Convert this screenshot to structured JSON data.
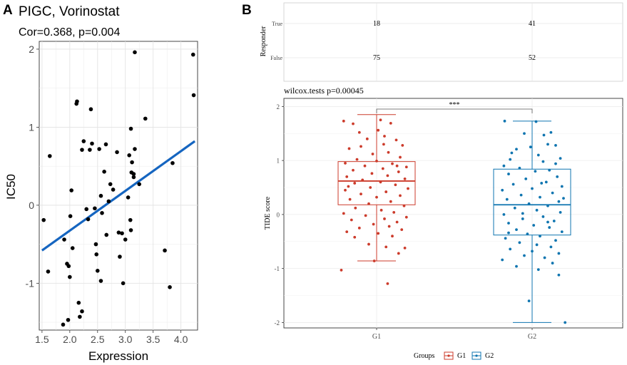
{
  "panels": {
    "a_label": "A",
    "b_label": "B"
  },
  "colors": {
    "line": "#1565c0",
    "g1": "#cc3b2b",
    "g2": "#0f75b0",
    "grid": "#ebebeb",
    "point": "#000000"
  },
  "chart_data": [
    {
      "type": "scatter",
      "title": "PIGC, Vorinostat",
      "subtitle": "Cor=0.368, p=0.004",
      "xlabel": "Expression",
      "ylabel": "IC50",
      "xlim": [
        1.45,
        4.3
      ],
      "ylim": [
        -1.6,
        2.1
      ],
      "xticks": [
        "1.5",
        "2.0",
        "2.5",
        "3.0",
        "3.5",
        "4.0"
      ],
      "xtick_values": [
        1.5,
        2.0,
        2.5,
        3.0,
        3.5,
        4.0
      ],
      "yticks": [
        "2",
        "1",
        "0",
        "-1"
      ],
      "ytick_values": [
        2,
        1,
        0,
        -1
      ],
      "grid": true,
      "fit_line": {
        "x": [
          1.5,
          4.25
        ],
        "y": [
          -0.58,
          0.82
        ]
      },
      "points": [
        [
          1.53,
          -0.19
        ],
        [
          1.61,
          -0.85
        ],
        [
          1.64,
          0.63
        ],
        [
          1.88,
          -1.53
        ],
        [
          1.9,
          -0.44
        ],
        [
          1.95,
          -0.75
        ],
        [
          1.97,
          -1.47
        ],
        [
          1.98,
          -0.78
        ],
        [
          2.0,
          -0.92
        ],
        [
          2.01,
          -0.14
        ],
        [
          2.03,
          0.19
        ],
        [
          2.05,
          -0.55
        ],
        [
          2.12,
          1.3
        ],
        [
          2.13,
          1.33
        ],
        [
          2.16,
          -1.25
        ],
        [
          2.18,
          -1.43
        ],
        [
          2.22,
          0.71
        ],
        [
          2.22,
          -1.36
        ],
        [
          2.25,
          0.82
        ],
        [
          2.3,
          -0.05
        ],
        [
          2.33,
          -0.18
        ],
        [
          2.36,
          0.71
        ],
        [
          2.38,
          1.23
        ],
        [
          2.4,
          0.79
        ],
        [
          2.45,
          -0.04
        ],
        [
          2.47,
          -0.5
        ],
        [
          2.48,
          -0.63
        ],
        [
          2.5,
          -0.84
        ],
        [
          2.53,
          0.72
        ],
        [
          2.56,
          0.12
        ],
        [
          2.56,
          -0.97
        ],
        [
          2.58,
          -0.1
        ],
        [
          2.62,
          0.43
        ],
        [
          2.65,
          0.78
        ],
        [
          2.66,
          -0.38
        ],
        [
          2.7,
          0.05
        ],
        [
          2.73,
          0.27
        ],
        [
          2.78,
          0.2
        ],
        [
          2.85,
          0.68
        ],
        [
          2.88,
          -0.35
        ],
        [
          2.9,
          -0.66
        ],
        [
          2.94,
          -0.36
        ],
        [
          2.96,
          -1.0
        ],
        [
          3.0,
          -0.44
        ],
        [
          3.05,
          0.1
        ],
        [
          3.07,
          0.64
        ],
        [
          3.09,
          -0.19
        ],
        [
          3.1,
          -0.32
        ],
        [
          3.1,
          0.98
        ],
        [
          3.11,
          0.42
        ],
        [
          3.12,
          0.55
        ],
        [
          3.15,
          0.4
        ],
        [
          3.15,
          0.36
        ],
        [
          3.17,
          1.96
        ],
        [
          3.17,
          0.72
        ],
        [
          3.25,
          0.27
        ],
        [
          3.36,
          1.11
        ],
        [
          3.71,
          -0.58
        ],
        [
          3.8,
          -1.05
        ],
        [
          3.85,
          0.54
        ],
        [
          4.22,
          1.93
        ],
        [
          4.23,
          1.41
        ]
      ]
    },
    {
      "type": "table",
      "ylabel": "Responder",
      "rows": [
        "True",
        "False"
      ],
      "columns": [
        "G1",
        "G2"
      ],
      "values": [
        [
          "18",
          "41"
        ],
        [
          "75",
          "52"
        ]
      ]
    },
    {
      "type": "box",
      "title": "wilcox.tests p=0.00045",
      "xlabel": "",
      "ylabel": "TIDE score",
      "ylim": [
        -2.1,
        2.15
      ],
      "yticks": [
        "2",
        "1",
        "0",
        "-1",
        "-2"
      ],
      "ytick_values": [
        2,
        1,
        0,
        -1,
        -2
      ],
      "categories": [
        "G1",
        "G2"
      ],
      "significance": "***",
      "legend_title": "Groups",
      "legend_entries": [
        "G1",
        "G2"
      ],
      "legend_position": "bottom",
      "boxes": [
        {
          "name": "G1",
          "min": -0.86,
          "q1": 0.18,
          "median": 0.62,
          "q3": 0.98,
          "max": 1.85
        },
        {
          "name": "G2",
          "min": -2.0,
          "q1": -0.38,
          "median": 0.18,
          "q3": 0.84,
          "max": 1.73
        }
      ],
      "points_g1": [
        [
          -0.42,
          1.73
        ],
        [
          -0.3,
          1.68
        ],
        [
          0.05,
          1.75
        ],
        [
          0.18,
          1.69
        ],
        [
          0.02,
          1.56
        ],
        [
          -0.22,
          1.52
        ],
        [
          0.1,
          1.45
        ],
        [
          0.25,
          1.38
        ],
        [
          -0.12,
          1.4
        ],
        [
          0.33,
          1.28
        ],
        [
          -0.35,
          1.22
        ],
        [
          0.15,
          1.15
        ],
        [
          -0.05,
          1.12
        ],
        [
          0.3,
          1.06
        ],
        [
          -0.25,
          1.02
        ],
        [
          0.0,
          0.99
        ],
        [
          0.2,
          0.94
        ],
        [
          -0.4,
          0.95
        ],
        [
          -0.15,
          0.9
        ],
        [
          0.38,
          0.88
        ],
        [
          0.08,
          0.85
        ],
        [
          -0.3,
          0.82
        ],
        [
          0.28,
          0.79
        ],
        [
          -0.06,
          0.76
        ],
        [
          0.14,
          0.72
        ],
        [
          -0.38,
          0.7
        ],
        [
          0.36,
          0.66
        ],
        [
          -0.18,
          0.64
        ],
        [
          0.05,
          0.6
        ],
        [
          -0.28,
          0.58
        ],
        [
          0.24,
          0.55
        ],
        [
          -0.08,
          0.5
        ],
        [
          0.4,
          0.48
        ],
        [
          -0.4,
          0.45
        ],
        [
          0.12,
          0.42
        ],
        [
          -0.2,
          0.38
        ],
        [
          0.3,
          0.35
        ],
        [
          0.0,
          0.32
        ],
        [
          -0.34,
          0.28
        ],
        [
          0.18,
          0.24
        ],
        [
          -0.1,
          0.2
        ],
        [
          0.35,
          0.16
        ],
        [
          -0.27,
          0.12
        ],
        [
          0.06,
          0.08
        ],
        [
          0.22,
          0.04
        ],
        [
          -0.42,
          0.02
        ],
        [
          -0.14,
          -0.02
        ],
        [
          0.38,
          -0.05
        ],
        [
          0.1,
          -0.08
        ],
        [
          -0.32,
          -0.1
        ],
        [
          0.26,
          -0.14
        ],
        [
          -0.04,
          -0.18
        ],
        [
          0.16,
          -0.22
        ],
        [
          -0.22,
          -0.25
        ],
        [
          0.32,
          -0.28
        ],
        [
          -0.38,
          -0.32
        ],
        [
          0.02,
          -0.35
        ],
        [
          0.2,
          -0.4
        ],
        [
          -0.28,
          -0.42
        ],
        [
          -0.1,
          -0.55
        ],
        [
          0.12,
          -0.6
        ],
        [
          -0.45,
          -1.03
        ],
        [
          0.28,
          -0.72
        ],
        [
          -0.03,
          -0.86
        ],
        [
          0.14,
          -1.28
        ],
        [
          0.36,
          -0.62
        ],
        [
          -0.36,
          0.52
        ],
        [
          0.26,
          0.9
        ],
        [
          -0.2,
          1.26
        ],
        [
          0.09,
          1.3
        ]
      ],
      "points_g2": [
        [
          -0.35,
          1.73
        ],
        [
          0.05,
          1.72
        ],
        [
          0.24,
          1.52
        ],
        [
          0.15,
          1.47
        ],
        [
          -0.1,
          1.5
        ],
        [
          0.3,
          1.28
        ],
        [
          0.2,
          1.3
        ],
        [
          -0.02,
          1.25
        ],
        [
          -0.2,
          1.21
        ],
        [
          0.08,
          1.1
        ],
        [
          0.36,
          1.04
        ],
        [
          -0.28,
          1.02
        ],
        [
          0.14,
          0.98
        ],
        [
          -0.36,
          0.9
        ],
        [
          -0.16,
          0.86
        ],
        [
          0.22,
          0.82
        ],
        [
          0.04,
          0.8
        ],
        [
          -0.3,
          0.75
        ],
        [
          0.32,
          0.7
        ],
        [
          -0.08,
          0.66
        ],
        [
          0.18,
          0.6
        ],
        [
          -0.24,
          0.56
        ],
        [
          0.38,
          0.52
        ],
        [
          0.0,
          0.48
        ],
        [
          -0.38,
          0.45
        ],
        [
          0.26,
          0.4
        ],
        [
          -0.14,
          0.36
        ],
        [
          0.1,
          0.32
        ],
        [
          -0.32,
          0.28
        ],
        [
          0.34,
          0.24
        ],
        [
          -0.04,
          0.2
        ],
        [
          0.2,
          0.16
        ],
        [
          -0.22,
          0.12
        ],
        [
          0.06,
          0.08
        ],
        [
          0.36,
          0.04
        ],
        [
          -0.36,
          0.0
        ],
        [
          0.14,
          -0.04
        ],
        [
          -0.12,
          -0.08
        ],
        [
          0.28,
          -0.12
        ],
        [
          -0.3,
          -0.16
        ],
        [
          0.02,
          -0.2
        ],
        [
          0.22,
          -0.24
        ],
        [
          -0.2,
          -0.28
        ],
        [
          0.38,
          -0.32
        ],
        [
          -0.06,
          -0.36
        ],
        [
          0.1,
          -0.4
        ],
        [
          -0.34,
          -0.44
        ],
        [
          0.3,
          -0.48
        ],
        [
          -0.16,
          -0.52
        ],
        [
          0.06,
          -0.56
        ],
        [
          0.24,
          -0.6
        ],
        [
          -0.28,
          -0.64
        ],
        [
          0.0,
          -0.68
        ],
        [
          0.34,
          -0.72
        ],
        [
          -0.1,
          -0.76
        ],
        [
          0.16,
          -0.8
        ],
        [
          -0.38,
          -0.84
        ],
        [
          0.26,
          -0.9
        ],
        [
          -0.2,
          -0.96
        ],
        [
          0.08,
          -1.02
        ],
        [
          0.34,
          -1.12
        ],
        [
          -0.04,
          -1.6
        ],
        [
          0.42,
          -2.0
        ],
        [
          -0.3,
          -0.34
        ],
        [
          0.12,
          0.58
        ],
        [
          -0.26,
          1.14
        ],
        [
          0.3,
          0.94
        ],
        [
          -0.12,
          0.02
        ],
        [
          0.2,
          -0.14
        ],
        [
          0.4,
          0.3
        ]
      ]
    }
  ]
}
